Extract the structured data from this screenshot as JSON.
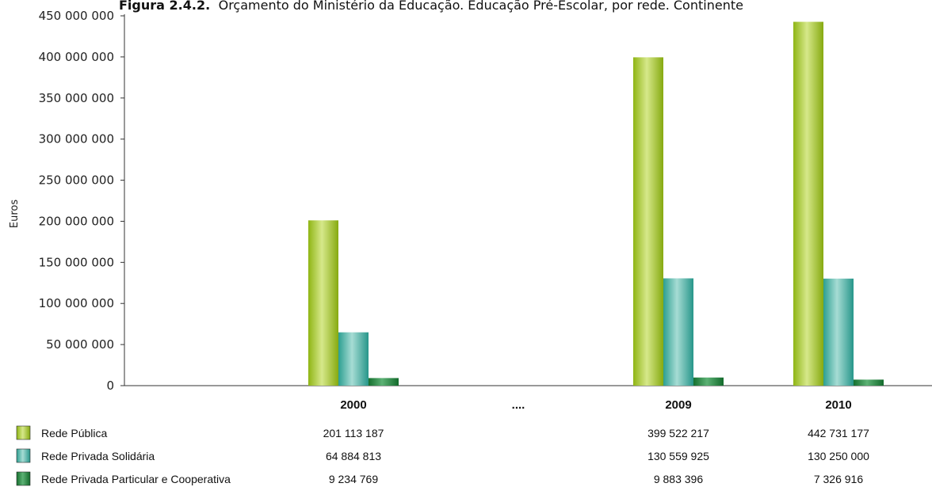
{
  "chart_data": {
    "type": "bar",
    "title_prefix": "Figura 2.4.2.",
    "title": "Orçamento do Ministério da Educação. Educação Pré-Escolar, por rede. Continente",
    "ylabel": "Euros",
    "ylim": [
      0,
      450000000
    ],
    "yticks": [
      "0",
      "50 000 000",
      "100 000 000",
      "150 000 000",
      "200 000 000",
      "250 000 000",
      "300 000 000",
      "350 000 000",
      "400 000 000",
      "450 000 000"
    ],
    "categories": [
      "2000",
      "....",
      "2009",
      "2010"
    ],
    "series": [
      {
        "name": "Rede Pública",
        "color": "#9dc31a",
        "values": [
          201113187,
          null,
          399522217,
          442731177
        ],
        "labels": [
          "201 113 187",
          "",
          "399 522 217",
          "442 731 177"
        ]
      },
      {
        "name": "Rede Privada Solidária",
        "color": "#3aaea0",
        "values": [
          64884813,
          null,
          130559925,
          130250000
        ],
        "labels": [
          "64 884 813",
          "",
          "130 559 925",
          "130 250 000"
        ]
      },
      {
        "name": "Rede Privada Particular e Cooperativa",
        "color": "#1d7f3a",
        "values": [
          9234769,
          null,
          9883396,
          7326916
        ],
        "labels": [
          "9 234 769",
          "",
          "9 883 396",
          "7 326 916"
        ]
      }
    ],
    "grid": false,
    "legend": "bottom-left table"
  }
}
